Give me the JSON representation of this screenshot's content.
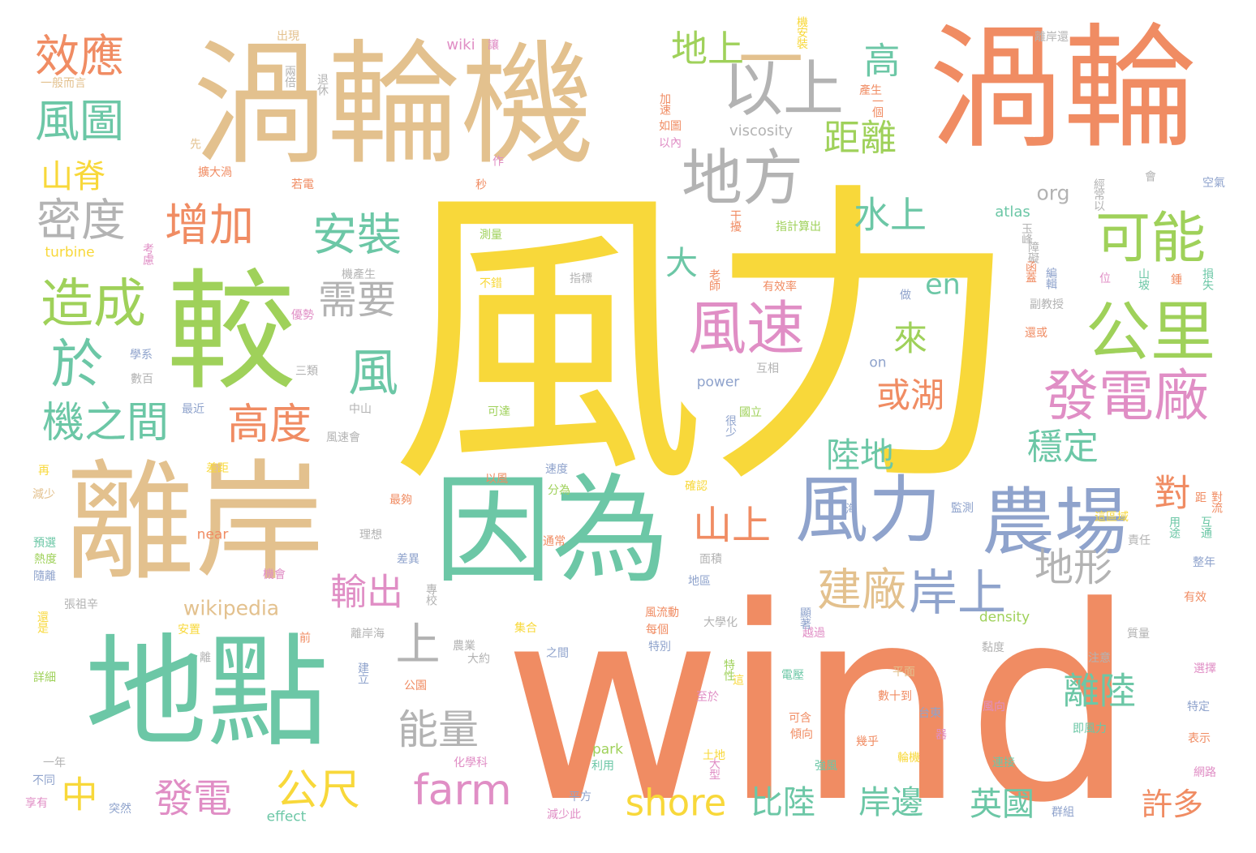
{
  "palette": {
    "yellow": "#f8d83a",
    "orange": "#f08c63",
    "tan": "#e3c18e",
    "green": "#9fd15a",
    "teal": "#6cc7a6",
    "blue": "#8fa3cc",
    "pink": "#e08ec5",
    "gray": "#b3b3b3"
  },
  "words": [
    {
      "text": "風力",
      "color": "yellow"
    },
    {
      "text": "wind",
      "color": "orange"
    },
    {
      "text": "渦輪機",
      "color": "tan"
    },
    {
      "text": "渦輪",
      "color": "orange"
    },
    {
      "text": "較",
      "color": "green"
    },
    {
      "text": "離岸",
      "color": "tan"
    },
    {
      "text": "因為",
      "color": "teal"
    },
    {
      "text": "地點",
      "color": "teal"
    },
    {
      "text": "風力",
      "color": "blue"
    },
    {
      "text": "農場",
      "color": "blue"
    },
    {
      "text": "一",
      "color": "tan"
    },
    {
      "text": "以上",
      "color": "gray"
    },
    {
      "text": "地方",
      "color": "gray"
    },
    {
      "text": "公里",
      "color": "green"
    },
    {
      "text": "發電廠",
      "color": "pink"
    },
    {
      "text": "風速",
      "color": "pink"
    },
    {
      "text": "可能",
      "color": "green"
    },
    {
      "text": "造成",
      "color": "green"
    },
    {
      "text": "效應",
      "color": "orange"
    },
    {
      "text": "風圖",
      "color": "teal"
    },
    {
      "text": "山脊",
      "color": "yellow"
    },
    {
      "text": "密度",
      "color": "gray"
    },
    {
      "text": "增加",
      "color": "orange"
    },
    {
      "text": "安裝",
      "color": "teal"
    },
    {
      "text": "於",
      "color": "teal"
    },
    {
      "text": "風",
      "color": "teal"
    },
    {
      "text": "機之間",
      "color": "teal"
    },
    {
      "text": "高度",
      "color": "orange"
    },
    {
      "text": "需要",
      "color": "gray"
    },
    {
      "text": "地上",
      "color": "green"
    },
    {
      "text": "高",
      "color": "teal"
    },
    {
      "text": "距離",
      "color": "green"
    },
    {
      "text": "水上",
      "color": "teal"
    },
    {
      "text": "大",
      "color": "teal"
    },
    {
      "text": "en",
      "color": "teal"
    },
    {
      "text": "來",
      "color": "green"
    },
    {
      "text": "或湖",
      "color": "orange"
    },
    {
      "text": "陸地",
      "color": "teal"
    },
    {
      "text": "穩定",
      "color": "teal"
    },
    {
      "text": "山上",
      "color": "orange"
    },
    {
      "text": "岸上",
      "color": "blue"
    },
    {
      "text": "地形",
      "color": "gray"
    },
    {
      "text": "建廠",
      "color": "tan"
    },
    {
      "text": "輸出",
      "color": "pink"
    },
    {
      "text": "上",
      "color": "gray"
    },
    {
      "text": "能量",
      "color": "gray"
    },
    {
      "text": "離陸",
      "color": "teal"
    },
    {
      "text": "對",
      "color": "orange"
    },
    {
      "text": "中",
      "color": "yellow"
    },
    {
      "text": "發電",
      "color": "pink"
    },
    {
      "text": "公尺",
      "color": "yellow"
    },
    {
      "text": "farm",
      "color": "pink"
    },
    {
      "text": "shore",
      "color": "yellow"
    },
    {
      "text": "比陸",
      "color": "teal"
    },
    {
      "text": "岸邊",
      "color": "teal"
    },
    {
      "text": "英國",
      "color": "teal"
    },
    {
      "text": "許多",
      "color": "orange"
    },
    {
      "text": "wikipedia",
      "color": "tan"
    },
    {
      "text": "org",
      "color": "gray"
    },
    {
      "text": "atlas",
      "color": "teal"
    },
    {
      "text": "viscosity",
      "color": "gray"
    },
    {
      "text": "power",
      "color": "blue"
    },
    {
      "text": "density",
      "color": "green"
    },
    {
      "text": "turbine",
      "color": "yellow"
    },
    {
      "text": "near",
      "color": "orange"
    },
    {
      "text": "park",
      "color": "green"
    },
    {
      "text": "effect",
      "color": "teal"
    },
    {
      "text": "on",
      "color": "blue"
    },
    {
      "text": "wiki",
      "color": "pink"
    },
    {
      "text": "讓",
      "color": "pink"
    },
    {
      "text": "出現",
      "color": "tan"
    },
    {
      "text": "一般而言",
      "color": "tan"
    },
    {
      "text": "兩倍",
      "color": "gray"
    },
    {
      "text": "退休",
      "color": "gray"
    },
    {
      "text": "加速",
      "color": "orange"
    },
    {
      "text": "如圖",
      "color": "orange"
    },
    {
      "text": "以內",
      "color": "pink"
    },
    {
      "text": "先",
      "color": "tan"
    },
    {
      "text": "擴大渦",
      "color": "orange"
    },
    {
      "text": "若電",
      "color": "orange"
    },
    {
      "text": "秒",
      "color": "orange"
    },
    {
      "text": "作",
      "color": "pink"
    },
    {
      "text": "考慮",
      "color": "pink"
    },
    {
      "text": "測量",
      "color": "green"
    },
    {
      "text": "干擾",
      "color": "orange"
    },
    {
      "text": "指計算出",
      "color": "green"
    },
    {
      "text": "機產生",
      "color": "gray"
    },
    {
      "text": "不錯",
      "color": "yellow"
    },
    {
      "text": "指標",
      "color": "gray"
    },
    {
      "text": "老師",
      "color": "orange"
    },
    {
      "text": "有效率",
      "color": "orange"
    },
    {
      "text": "做",
      "color": "blue"
    },
    {
      "text": "優勢",
      "color": "pink"
    },
    {
      "text": "學系",
      "color": "blue"
    },
    {
      "text": "三類",
      "color": "gray"
    },
    {
      "text": "數百",
      "color": "gray"
    },
    {
      "text": "中山",
      "color": "gray"
    },
    {
      "text": "最近",
      "color": "blue"
    },
    {
      "text": "風速會",
      "color": "gray"
    },
    {
      "text": "再",
      "color": "yellow"
    },
    {
      "text": "差距",
      "color": "yellow"
    },
    {
      "text": "減少",
      "color": "tan"
    },
    {
      "text": "可達",
      "color": "green"
    },
    {
      "text": "很少",
      "color": "blue"
    },
    {
      "text": "國立",
      "color": "green"
    },
    {
      "text": "互相",
      "color": "gray"
    },
    {
      "text": "以風",
      "color": "orange"
    },
    {
      "text": "速度",
      "color": "blue"
    },
    {
      "text": "分為",
      "color": "green"
    },
    {
      "text": "確認",
      "color": "yellow"
    },
    {
      "text": "最夠",
      "color": "orange"
    },
    {
      "text": "理想",
      "color": "gray"
    },
    {
      "text": "通常",
      "color": "orange"
    },
    {
      "text": "預選",
      "color": "teal"
    },
    {
      "text": "熱度",
      "color": "green"
    },
    {
      "text": "差異",
      "color": "blue"
    },
    {
      "text": "隨離",
      "color": "blue"
    },
    {
      "text": "機會",
      "color": "pink"
    },
    {
      "text": "張祖辛",
      "color": "gray"
    },
    {
      "text": "還是",
      "color": "yellow"
    },
    {
      "text": "安置",
      "color": "yellow"
    },
    {
      "text": "離岸海",
      "color": "gray"
    },
    {
      "text": "專校",
      "color": "gray"
    },
    {
      "text": "集合",
      "color": "yellow"
    },
    {
      "text": "前",
      "color": "orange"
    },
    {
      "text": "離",
      "color": "gray"
    },
    {
      "text": "農業",
      "color": "gray"
    },
    {
      "text": "大約",
      "color": "gray"
    },
    {
      "text": "建立",
      "color": "blue"
    },
    {
      "text": "詳細",
      "color": "green"
    },
    {
      "text": "公園",
      "color": "orange"
    },
    {
      "text": "化學科",
      "color": "pink"
    },
    {
      "text": "一年",
      "color": "gray"
    },
    {
      "text": "不同",
      "color": "blue"
    },
    {
      "text": "享有",
      "color": "pink"
    },
    {
      "text": "突然",
      "color": "blue"
    },
    {
      "text": "平方",
      "color": "blue"
    },
    {
      "text": "減少此",
      "color": "pink"
    },
    {
      "text": "利用",
      "color": "teal"
    },
    {
      "text": "大型",
      "color": "pink"
    },
    {
      "text": "土地",
      "color": "yellow"
    },
    {
      "text": "至於",
      "color": "pink"
    },
    {
      "text": "特別",
      "color": "blue"
    },
    {
      "text": "每個",
      "color": "orange"
    },
    {
      "text": "之間",
      "color": "blue"
    },
    {
      "text": "風流動",
      "color": "orange"
    },
    {
      "text": "大學化",
      "color": "gray"
    },
    {
      "text": "地區",
      "color": "blue"
    },
    {
      "text": "面積",
      "color": "gray"
    },
    {
      "text": "特性",
      "color": "green"
    },
    {
      "text": "這",
      "color": "yellow"
    },
    {
      "text": "電壓",
      "color": "teal"
    },
    {
      "text": "越過",
      "color": "pink"
    },
    {
      "text": "顯著",
      "color": "blue"
    },
    {
      "text": "海",
      "color": "blue"
    },
    {
      "text": "監測",
      "color": "blue"
    },
    {
      "text": "平面",
      "color": "tan"
    },
    {
      "text": "數十到",
      "color": "orange"
    },
    {
      "text": "可含",
      "color": "orange"
    },
    {
      "text": "傾向",
      "color": "orange"
    },
    {
      "text": "幾乎",
      "color": "orange"
    },
    {
      "text": "輪機",
      "color": "yellow"
    },
    {
      "text": "器",
      "color": "pink"
    },
    {
      "text": "台東",
      "color": "blue"
    },
    {
      "text": "強風",
      "color": "teal"
    },
    {
      "text": "連接",
      "color": "teal"
    },
    {
      "text": "風向",
      "color": "pink"
    },
    {
      "text": "即風力",
      "color": "teal"
    },
    {
      "text": "群組",
      "color": "blue"
    },
    {
      "text": "黏度",
      "color": "gray"
    },
    {
      "text": "注意",
      "color": "gray"
    },
    {
      "text": "質量",
      "color": "gray"
    },
    {
      "text": "選擇",
      "color": "pink"
    },
    {
      "text": "特定",
      "color": "blue"
    },
    {
      "text": "表示",
      "color": "orange"
    },
    {
      "text": "網路",
      "color": "pink"
    },
    {
      "text": "有效",
      "color": "orange"
    },
    {
      "text": "整年",
      "color": "blue"
    },
    {
      "text": "責任",
      "color": "gray"
    },
    {
      "text": "距",
      "color": "orange"
    },
    {
      "text": "對流",
      "color": "orange"
    },
    {
      "text": "互通",
      "color": "teal"
    },
    {
      "text": "用途",
      "color": "teal"
    },
    {
      "text": "這區域",
      "color": "yellow"
    },
    {
      "text": "還或",
      "color": "orange"
    },
    {
      "text": "副教授",
      "color": "gray"
    },
    {
      "text": "編輯",
      "color": "blue"
    },
    {
      "text": "位",
      "color": "pink"
    },
    {
      "text": "山坡",
      "color": "teal"
    },
    {
      "text": "鍾",
      "color": "orange"
    },
    {
      "text": "損失",
      "color": "teal"
    },
    {
      "text": "障礙",
      "color": "gray"
    },
    {
      "text": "函蓋",
      "color": "orange"
    },
    {
      "text": "玉峰",
      "color": "gray"
    },
    {
      "text": "經常以",
      "color": "gray"
    },
    {
      "text": "會",
      "color": "gray"
    },
    {
      "text": "空氣",
      "color": "blue"
    },
    {
      "text": "一個",
      "color": "orange"
    },
    {
      "text": "產生",
      "color": "orange"
    },
    {
      "text": "機安裝",
      "color": "yellow"
    },
    {
      "text": "離岸還",
      "color": "gray"
    }
  ]
}
